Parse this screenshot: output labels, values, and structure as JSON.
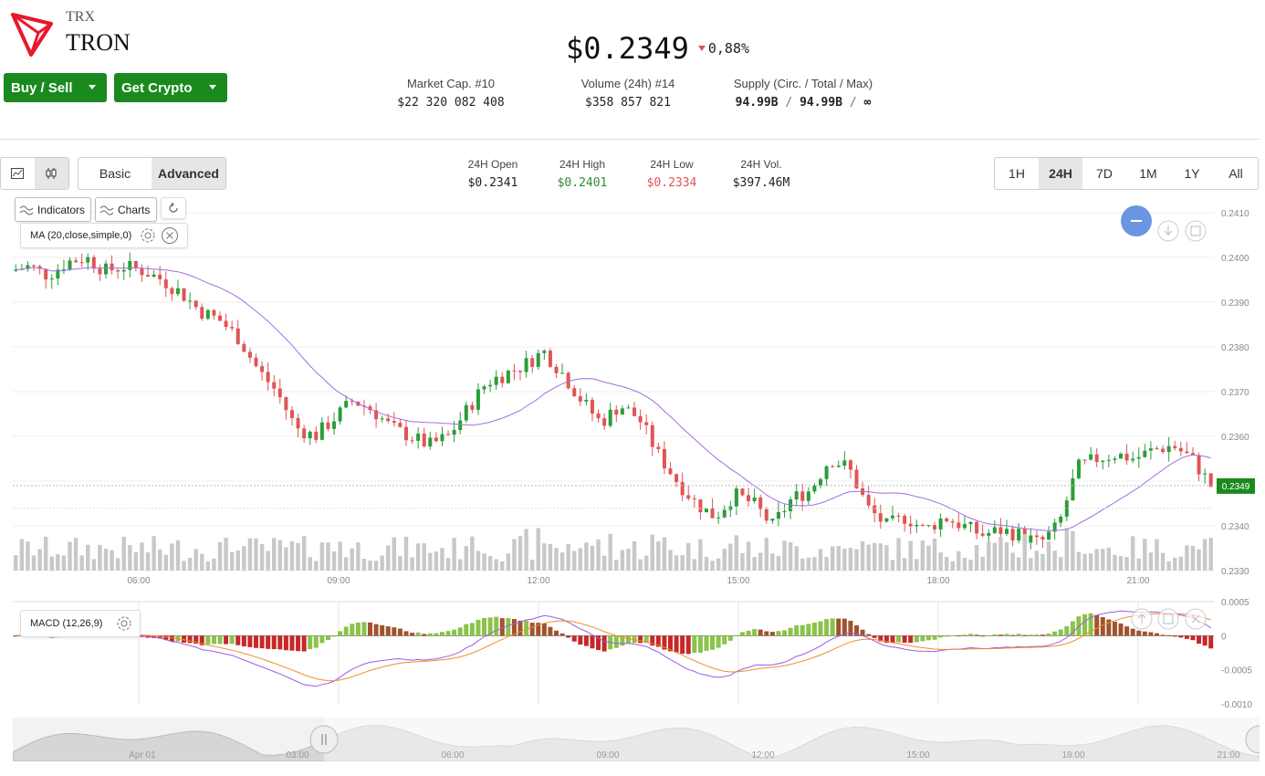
{
  "asset": {
    "symbol": "TRX",
    "name": "TRON"
  },
  "actions": {
    "buy_sell": "Buy / Sell",
    "get_crypto": "Get Crypto"
  },
  "price": {
    "value": "$0.2349",
    "change": "0,88%",
    "direction": "down"
  },
  "stats": [
    {
      "label": "Market Cap. #10",
      "value": "$22 320 082 408"
    },
    {
      "label": "Volume (24h) #14",
      "value": "$358 857 821"
    },
    {
      "label": "Supply (Circ. / Total / Max)",
      "circ": "94.99B",
      "total": "94.99B",
      "max": "∞",
      "sep": "/"
    }
  ],
  "view_modes": {
    "basic": "Basic",
    "advanced": "Advanced",
    "active": "Advanced"
  },
  "day_stats": [
    {
      "label": "24H Open",
      "value": "$0.2341",
      "color": "#222222"
    },
    {
      "label": "24H High",
      "value": "$0.2401",
      "color": "#2e8b2e"
    },
    {
      "label": "24H Low",
      "value": "$0.2334",
      "color": "#e05555"
    },
    {
      "label": "24H Vol.",
      "value": "$397.46M",
      "color": "#222222"
    }
  ],
  "ranges": [
    "1H",
    "24H",
    "7D",
    "1M",
    "1Y",
    "All"
  ],
  "active_range": "24H",
  "toolbar": {
    "indicators": "Indicators",
    "charts": "Charts"
  },
  "ma_label": "MA (20,close,simple,0)",
  "macd_label": "MACD (12,26,9)",
  "colors": {
    "up": "#2a9d3a",
    "down": "#e05555",
    "ma": "#a26ee0",
    "accent": "#1a8a1f",
    "price_tag": "#1a8a1f"
  },
  "chart_data": {
    "type": "candlestick",
    "price_axis": {
      "ticks": [
        "0.2410",
        "0.2400",
        "0.2390",
        "0.2380",
        "0.2370",
        "0.2360",
        "0.2350",
        "0.2340",
        "0.2330"
      ],
      "ylim": [
        0.233,
        0.241
      ]
    },
    "time_axis": [
      "06:00",
      "09:00",
      "12:00",
      "15:00",
      "18:00",
      "21:00"
    ],
    "last_price": "0.2349",
    "price_path": [
      0.2397,
      0.2398,
      0.2396,
      0.2399,
      0.24,
      0.2397,
      0.2398,
      0.2397,
      0.2395,
      0.2392,
      0.2388,
      0.2386,
      0.2382,
      0.2375,
      0.237,
      0.2362,
      0.236,
      0.2364,
      0.2368,
      0.2366,
      0.2362,
      0.236,
      0.2358,
      0.236,
      0.2366,
      0.2372,
      0.2374,
      0.2376,
      0.2379,
      0.2374,
      0.2368,
      0.2363,
      0.2367,
      0.2364,
      0.2356,
      0.235,
      0.2345,
      0.2342,
      0.2347,
      0.2345,
      0.234,
      0.2346,
      0.2348,
      0.2355,
      0.2353,
      0.2344,
      0.234,
      0.2342,
      0.2339,
      0.2342,
      0.234,
      0.2338,
      0.2339,
      0.2338,
      0.2336,
      0.234,
      0.2353,
      0.2355,
      0.2356,
      0.2355,
      0.2357,
      0.2358,
      0.2355,
      0.2349
    ],
    "macd_axis": {
      "ticks": [
        "0.0005",
        "0",
        "-0.0005",
        "-0.0010"
      ],
      "ylim": [
        -0.001,
        0.0005
      ]
    },
    "navigator_axis": [
      "Apr 01",
      "03:00",
      "06:00",
      "09:00",
      "12:00",
      "15:00",
      "18:00",
      "21:00"
    ]
  }
}
